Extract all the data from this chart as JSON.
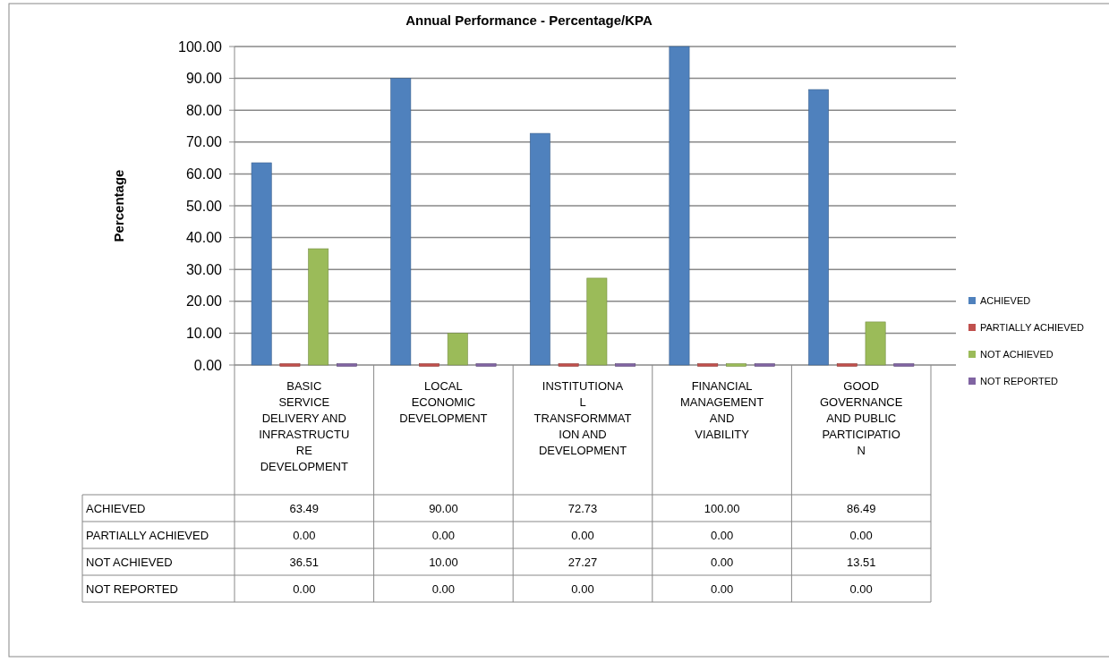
{
  "chart_data": {
    "type": "bar",
    "title": "Annual Performance - Percentage/KPA",
    "ylabel": "Percentage",
    "categories": [
      "BASIC SERVICE DELIVERY AND INFRASTRUCTURE DEVELOPMENT",
      "LOCAL ECONOMIC DEVELOPMENT",
      "INSTITUTIONAL TRANSFORMMATION AND DEVELOPMENT",
      "FINANCIAL MANAGEMENT AND VIABILITY",
      "GOOD GOVERNANCE AND PUBLIC PARTICIPATION"
    ],
    "series": [
      {
        "name": "ACHIEVED",
        "color": "#4f81bd",
        "values": [
          63.49,
          90,
          72.73,
          100,
          86.49
        ],
        "value_labels": [
          "63.49",
          "90.00",
          "72.73",
          "100.00",
          "86.49"
        ]
      },
      {
        "name": "PARTIALLY ACHIEVED",
        "color": "#c0504d",
        "values": [
          0,
          0,
          0,
          0,
          0
        ],
        "value_labels": [
          "0.00",
          "0.00",
          "0.00",
          "0.00",
          "0.00"
        ]
      },
      {
        "name": "NOT ACHIEVED",
        "color": "#9bbb59",
        "values": [
          36.51,
          10,
          27.27,
          0,
          13.51
        ],
        "value_labels": [
          "36.51",
          "10.00",
          "27.27",
          "0.00",
          "13.51"
        ]
      },
      {
        "name": "NOT REPORTED",
        "color": "#8064a2",
        "values": [
          0,
          0,
          0,
          0,
          0
        ],
        "value_labels": [
          "0.00",
          "0.00",
          "0.00",
          "0.00",
          "0.00"
        ]
      }
    ],
    "ylim": [
      0,
      100
    ],
    "yticks": [
      {
        "value": 0,
        "label": "0.00"
      },
      {
        "value": 10,
        "label": "10.00"
      },
      {
        "value": 20,
        "label": "20.00"
      },
      {
        "value": 30,
        "label": "30.00"
      },
      {
        "value": 40,
        "label": "40.00"
      },
      {
        "value": 50,
        "label": "50.00"
      },
      {
        "value": 60,
        "label": "60.00"
      },
      {
        "value": 70,
        "label": "70.00"
      },
      {
        "value": 80,
        "label": "80.00"
      },
      {
        "value": 90,
        "label": "90.00"
      },
      {
        "value": 100,
        "label": "100.00"
      }
    ],
    "grid": true,
    "legend": "right"
  }
}
